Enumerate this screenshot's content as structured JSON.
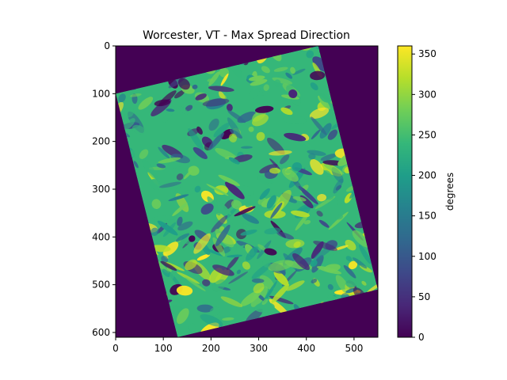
{
  "chart_data": {
    "type": "heatmap",
    "title": "Worcester, VT - Max Spread Direction",
    "xlabel": "",
    "ylabel": "",
    "xlim": [
      0,
      550
    ],
    "ylim": [
      610,
      0
    ],
    "x_ticks": [
      0,
      100,
      200,
      300,
      400,
      500
    ],
    "y_ticks": [
      0,
      100,
      200,
      300,
      400,
      500,
      600
    ],
    "colorbar": {
      "label": "degrees",
      "range": [
        0,
        360
      ],
      "ticks": [
        0,
        50,
        100,
        150,
        200,
        250,
        300,
        350
      ],
      "colormap": "viridis"
    },
    "data_extent_corners": [
      {
        "x": 0,
        "y": 100
      },
      {
        "x": 425,
        "y": 0
      },
      {
        "x": 550,
        "y": 510
      },
      {
        "x": 130,
        "y": 610
      }
    ],
    "background_value": 0,
    "colors": {
      "background": "#440154",
      "viridis": [
        "#440154",
        "#482878",
        "#3e4989",
        "#31688e",
        "#26828e",
        "#1f9e89",
        "#35b779",
        "#6ece58",
        "#b5de2b",
        "#fde725"
      ]
    }
  }
}
